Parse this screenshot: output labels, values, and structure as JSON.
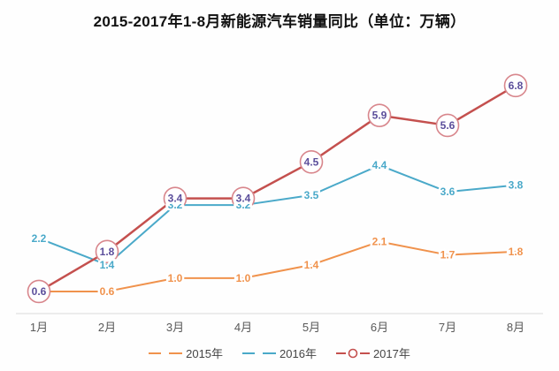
{
  "title": "2015-2017年1-8月新能源汽车销量同比（单位：万辆）",
  "chart_data": {
    "type": "line",
    "categories": [
      "1月",
      "2月",
      "3月",
      "4月",
      "5月",
      "6月",
      "7月",
      "8月"
    ],
    "series": [
      {
        "name": "2015年",
        "values": [
          0.6,
          0.6,
          1.0,
          1.0,
          1.4,
          2.1,
          1.7,
          1.8
        ],
        "color": "#F0924C",
        "label_color": "#F0924C",
        "marker": "none",
        "line_width": 2
      },
      {
        "name": "2016年",
        "values": [
          2.2,
          1.4,
          3.2,
          3.2,
          3.5,
          4.4,
          3.6,
          3.8
        ],
        "color": "#4AA9C9",
        "label_color": "#4AA9C9",
        "marker": "none",
        "line_width": 2
      },
      {
        "name": "2017年",
        "values": [
          0.6,
          1.8,
          3.4,
          3.4,
          4.5,
          5.9,
          5.6,
          6.8
        ],
        "color": "#C4504E",
        "label_color": "#5B4E9B",
        "marker": "circle",
        "marker_ring_color": "#D8868C",
        "line_width": 2.5
      }
    ],
    "title": "2015-2017年1-8月新能源汽车销量同比（单位：万辆）",
    "xlabel": "",
    "ylabel": "",
    "ylim": [
      0,
      7.5
    ],
    "grid": false,
    "legend_position": "bottom",
    "value_label_decimals": 1,
    "axis_color": "#D9D9D9",
    "tick_color": "#595959"
  }
}
